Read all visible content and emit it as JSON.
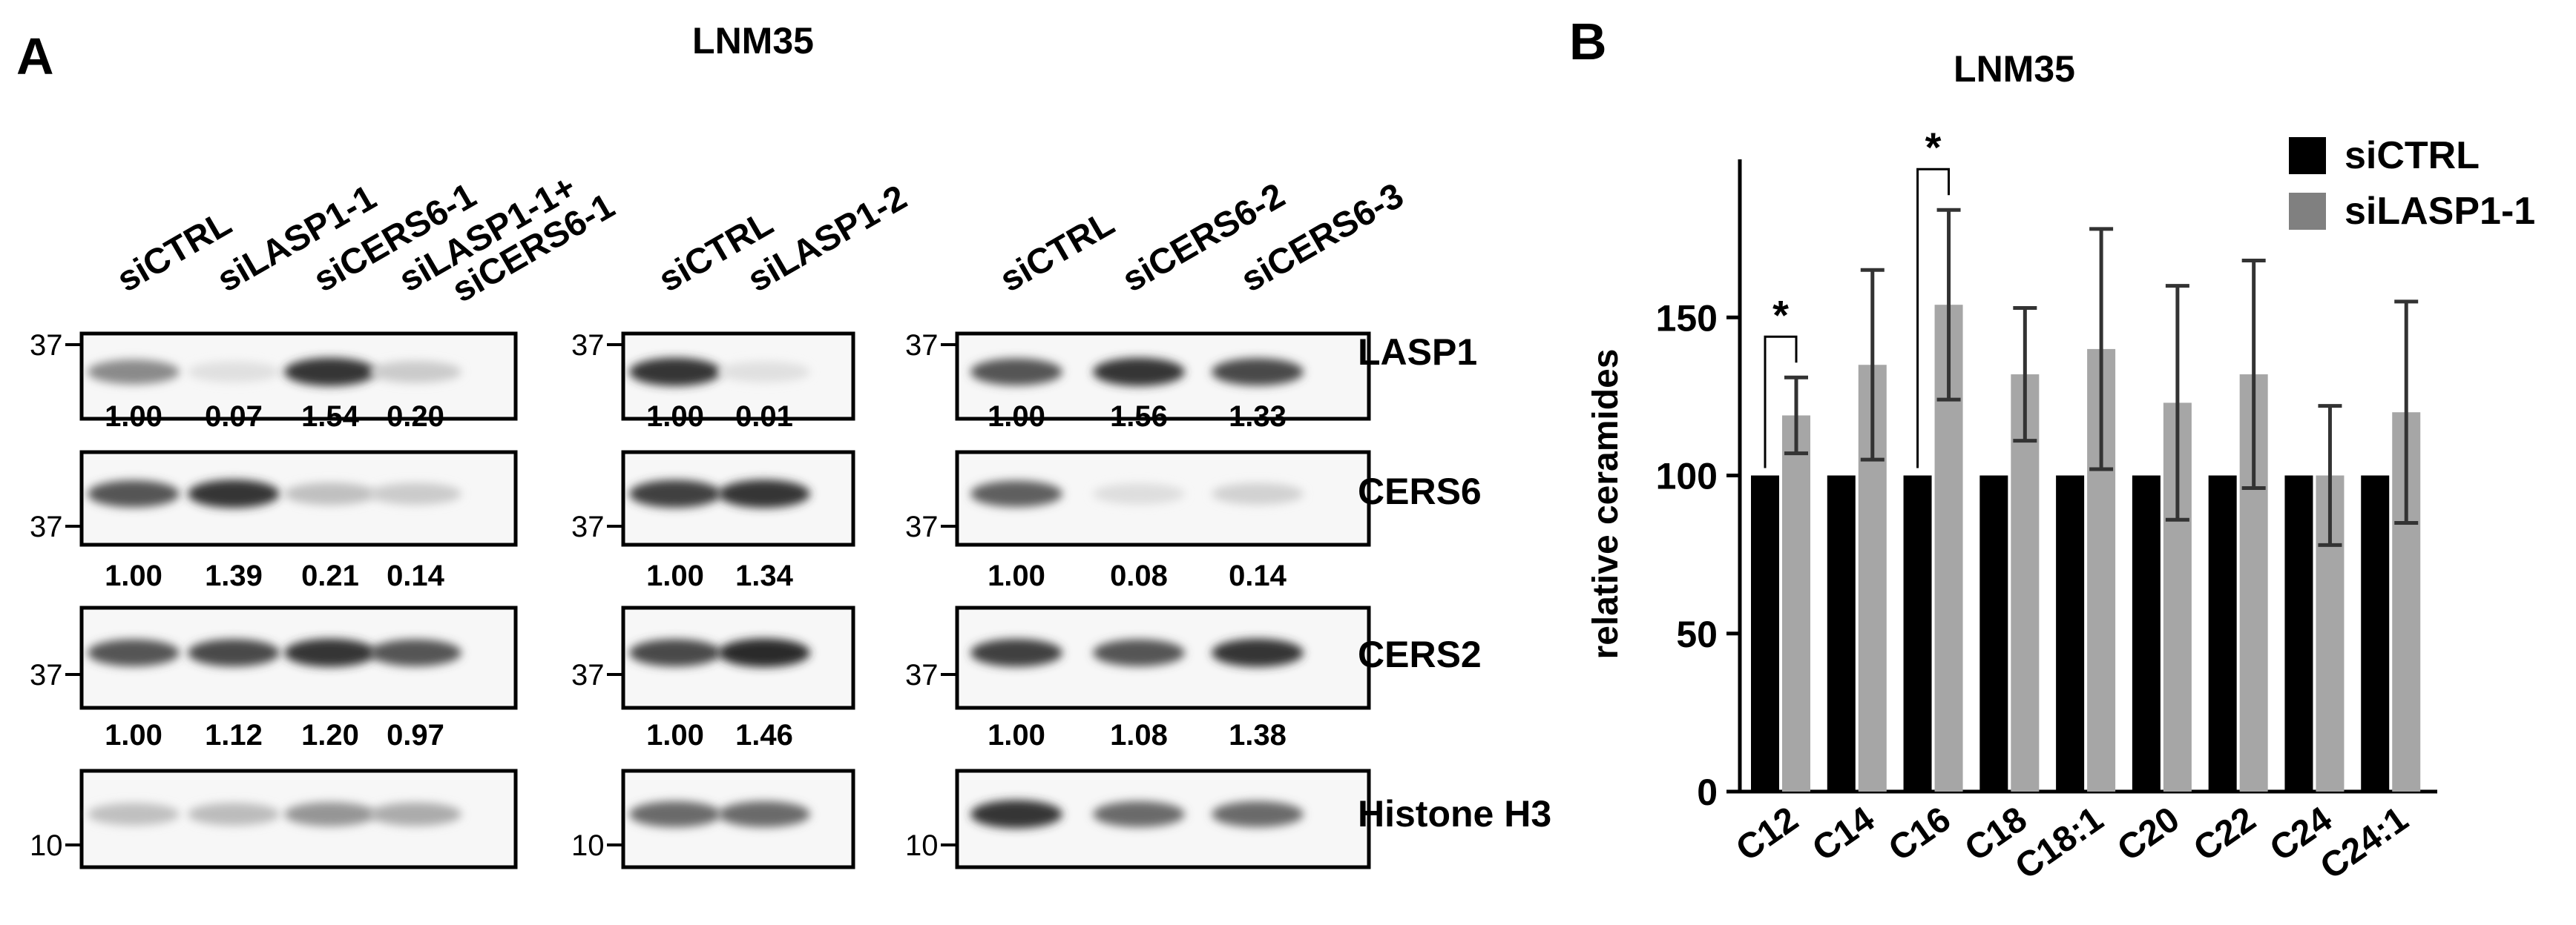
{
  "panel_a": {
    "letter": "A",
    "title": "LNM35",
    "blots": [
      {
        "lanes": [
          "siCTRL",
          "siLASP1-1",
          "siCERS6-1",
          "siLASP1-1+\nsiCERS6-1"
        ],
        "rows": [
          {
            "protein": "LASP1",
            "marker": "37",
            "values": [
              "1.00",
              "0.07",
              "1.54",
              "0.20"
            ],
            "intensity": [
              0.45,
              0.05,
              0.85,
              0.15
            ]
          },
          {
            "protein": "CERS6",
            "marker": "37",
            "values": [
              "1.00",
              "1.39",
              "0.21",
              "0.14"
            ],
            "intensity": [
              0.7,
              0.85,
              0.2,
              0.15
            ]
          },
          {
            "protein": "CERS2",
            "marker": "37",
            "values": [
              "1.00",
              "1.12",
              "1.20",
              "0.97"
            ],
            "intensity": [
              0.7,
              0.75,
              0.85,
              0.7
            ]
          },
          {
            "protein": "Histone H3",
            "marker": "10",
            "values": [],
            "intensity": [
              0.2,
              0.22,
              0.4,
              0.3
            ]
          }
        ]
      },
      {
        "lanes": [
          "siCTRL",
          "siLASP1-2"
        ],
        "rows": [
          {
            "protein": "LASP1",
            "marker": "37",
            "values": [
              "1.00",
              "0.01"
            ],
            "intensity": [
              0.85,
              0.05
            ]
          },
          {
            "protein": "CERS6",
            "marker": "37",
            "values": [
              "1.00",
              "1.34"
            ],
            "intensity": [
              0.8,
              0.85
            ]
          },
          {
            "protein": "CERS2",
            "marker": "37",
            "values": [
              "1.00",
              "1.46"
            ],
            "intensity": [
              0.75,
              0.9
            ]
          },
          {
            "protein": "Histone H3",
            "marker": "10",
            "values": [],
            "intensity": [
              0.6,
              0.6
            ]
          }
        ]
      },
      {
        "lanes": [
          "siCTRL",
          "siCERS6-2",
          "siCERS6-3"
        ],
        "rows": [
          {
            "protein": "LASP1",
            "marker": "37",
            "values": [
              "1.00",
              "1.56",
              "1.33"
            ],
            "intensity": [
              0.7,
              0.85,
              0.75
            ]
          },
          {
            "protein": "CERS6",
            "marker": "37",
            "values": [
              "1.00",
              "0.08",
              "0.14"
            ],
            "intensity": [
              0.65,
              0.06,
              0.12
            ]
          },
          {
            "protein": "CERS2",
            "marker": "37",
            "values": [
              "1.00",
              "1.08",
              "1.38"
            ],
            "intensity": [
              0.8,
              0.7,
              0.85
            ]
          },
          {
            "protein": "Histone H3",
            "marker": "10",
            "values": [],
            "intensity": [
              0.85,
              0.6,
              0.6
            ]
          }
        ]
      }
    ],
    "protein_labels": [
      "LASP1",
      "CERS6",
      "CERS2",
      "Histone H3"
    ]
  },
  "panel_b": {
    "letter": "B",
    "colors": {
      "siCTRL": "#000000",
      "siLASP1-1": "#a6a6a6",
      "legend_gray": "#808080"
    }
  },
  "chart_data": {
    "type": "bar",
    "title": "LNM35",
    "xlabel": "",
    "ylabel": "relative ceramides",
    "ylim": [
      0,
      200
    ],
    "yticks": [
      "0",
      "50",
      "100",
      "150"
    ],
    "legend_position": "top-right",
    "categories": [
      "C12",
      "C14",
      "C16",
      "C18",
      "C18:1",
      "C20",
      "C22",
      "C24",
      "C24:1"
    ],
    "series": [
      {
        "name": "siCTRL",
        "values": [
          100,
          100,
          100,
          100,
          100,
          100,
          100,
          100,
          100
        ]
      },
      {
        "name": "siLASP1-1",
        "values": [
          119,
          135,
          154,
          132,
          140,
          123,
          132,
          100,
          120
        ],
        "error": [
          12,
          30,
          30,
          21,
          38,
          37,
          36,
          22,
          35
        ]
      }
    ],
    "significance": [
      {
        "category": "C12",
        "label": "*"
      },
      {
        "category": "C16",
        "label": "*"
      }
    ]
  }
}
